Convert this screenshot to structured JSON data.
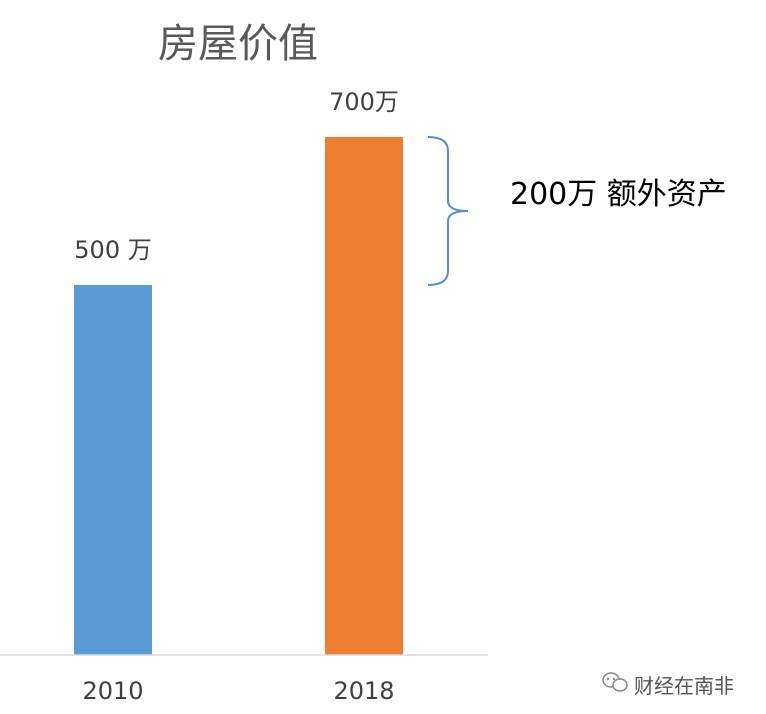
{
  "chart_data": {
    "type": "bar",
    "title": "房屋价值",
    "categories": [
      "2010",
      "2018"
    ],
    "values": [
      500,
      700
    ],
    "data_labels": [
      "500 万",
      "700万"
    ],
    "colors": [
      "#5b9bd5",
      "#ed7d31"
    ],
    "ylim": [
      0,
      750
    ],
    "grid": false,
    "legend": "none",
    "annotation": {
      "text": "200万 额外资产",
      "from_value": 500,
      "to_value": 700,
      "bracket_color": "#5b8fc7"
    }
  },
  "watermark": {
    "text": "财经在南非",
    "icon": "wechat-icon"
  }
}
